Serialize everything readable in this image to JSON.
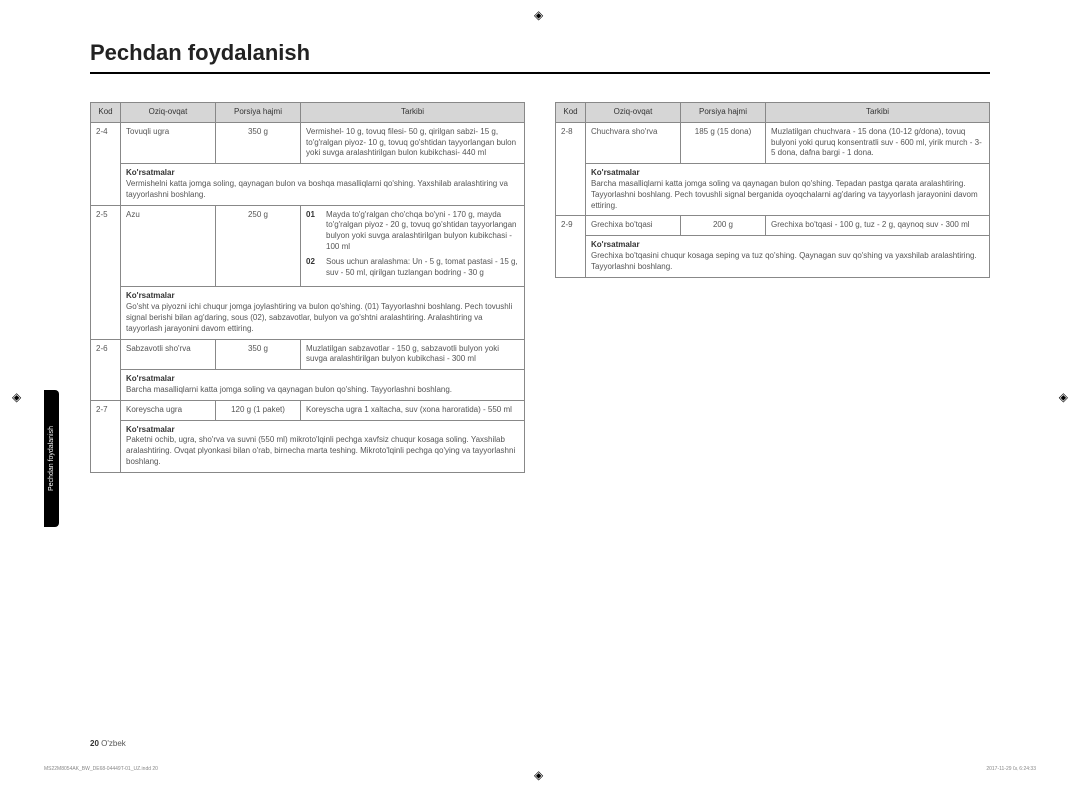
{
  "page": {
    "title": "Pechdan foydalanish",
    "side_tab": "Pechdan foydalanish",
    "footer_page_num": "20",
    "footer_lang": "O'zbek",
    "doc_ref_left": "MS22M8054AK_BW_DE68-04449T-01_UZ.indd   20",
    "doc_ref_right": "2017-11-29   ㏇ 6:24:33"
  },
  "headers": {
    "kod": "Kod",
    "oziq": "Oziq-ovqat",
    "porsiya": "Porsiya hajmi",
    "tarkibi": "Tarkibi"
  },
  "ko_label": "Ko'rsatmalar",
  "left_rows": [
    {
      "kod": "2-4",
      "food": "Tovuqli ugra",
      "portion": "350 g",
      "tarkibi": "Vermishel- 10 g, tovuq filesi- 50 g, qirilgan sabzi- 15 g, to'g'ralgan piyoz- 10 g, tovuq go'shtidan tayyorlangan bulon yoki suvga aralashtirilgan bulon kubikchasi- 440 ml",
      "ko": "Vermishelni katta jomga soling, qaynagan bulon va boshqa masalliqlarni qo'shing. Yaxshilab aralashtiring va tayyorlashni boshlang."
    },
    {
      "kod": "2-5",
      "food": "Azu",
      "portion": "250 g",
      "tarkibi_sub": [
        {
          "num": "01",
          "txt": "Mayda to'g'ralgan cho'chqa bo'yni - 170 g, mayda to'g'ralgan piyoz - 20 g, tovuq go'shtidan tayyorlangan bulyon yoki suvga aralashtirilgan bulyon kubikchasi - 100 ml"
        },
        {
          "num": "02",
          "txt": "Sous uchun aralashma: Un - 5 g, tomat pastasi - 15 g, suv - 50 ml, qirilgan tuzlangan bodring - 30 g"
        }
      ],
      "ko": "Go'sht va piyozni ichi chuqur jomga joylashtiring va bulon qo'shing. (01) Tayyorlashni boshlang. Pech tovushli signal berishi bilan ag'daring, sous (02), sabzavotlar, bulyon va go'shtni aralashtiring. Aralashtiring va tayyorlash jarayonini davom ettiring."
    },
    {
      "kod": "2-6",
      "food": "Sabzavotli sho'rva",
      "portion": "350 g",
      "tarkibi": "Muzlatilgan sabzavotlar - 150 g, sabzavotli bulyon yoki suvga aralashtirilgan bulyon kubikchasi - 300 ml",
      "ko": "Barcha masalliqlarni katta jomga soling va qaynagan bulon qo'shing. Tayyorlashni boshlang."
    },
    {
      "kod": "2-7",
      "food": "Koreyscha ugra",
      "portion": "120 g (1 paket)",
      "tarkibi": "Koreyscha ugra 1 xaltacha, suv (xona haroratida) - 550 ml",
      "ko": "Paketni ochib, ugra, sho'rva va suvni (550 ml) mikroto'lqinli pechga xavfsiz chuqur kosaga soling. Yaxshilab aralashtiring. Ovqat plyonkasi bilan o'rab, birnecha marta teshing. Mikroto'lqinli pechga qo'ying va tayyorlashni boshlang."
    }
  ],
  "right_rows": [
    {
      "kod": "2-8",
      "food": "Chuchvara sho'rva",
      "portion": "185 g (15 dona)",
      "tarkibi": "Muzlatilgan chuchvara - 15 dona (10-12 g/dona), tovuq bulyoni yoki quruq konsentratli suv - 600 ml, yirik murch - 3-5 dona, dafna bargi - 1 dona.",
      "ko": "Barcha masalliqlarni katta jomga soling va qaynagan bulon qo'shing. Tepadan pastga qarata aralashtiring. Tayyorlashni boshlang. Pech tovushli signal berganida oyoqchalarni ag'daring va tayyorlash jarayonini davom ettiring."
    },
    {
      "kod": "2-9",
      "food": "Grechixa bo'tqasi",
      "portion": "200 g",
      "tarkibi": "Grechixa bo'tqasi - 100 g, tuz - 2 g, qaynoq suv - 300 ml",
      "ko": "Grechixa bo'tqasini chuqur kosaga seping va tuz qo'shing. Qaynagan suv qo'shing va yaxshilab aralashtiring. Tayyorlashni boshlang."
    }
  ],
  "colors": {
    "header_bg": "#d6d6d6",
    "border": "#888888",
    "text": "#555555"
  }
}
